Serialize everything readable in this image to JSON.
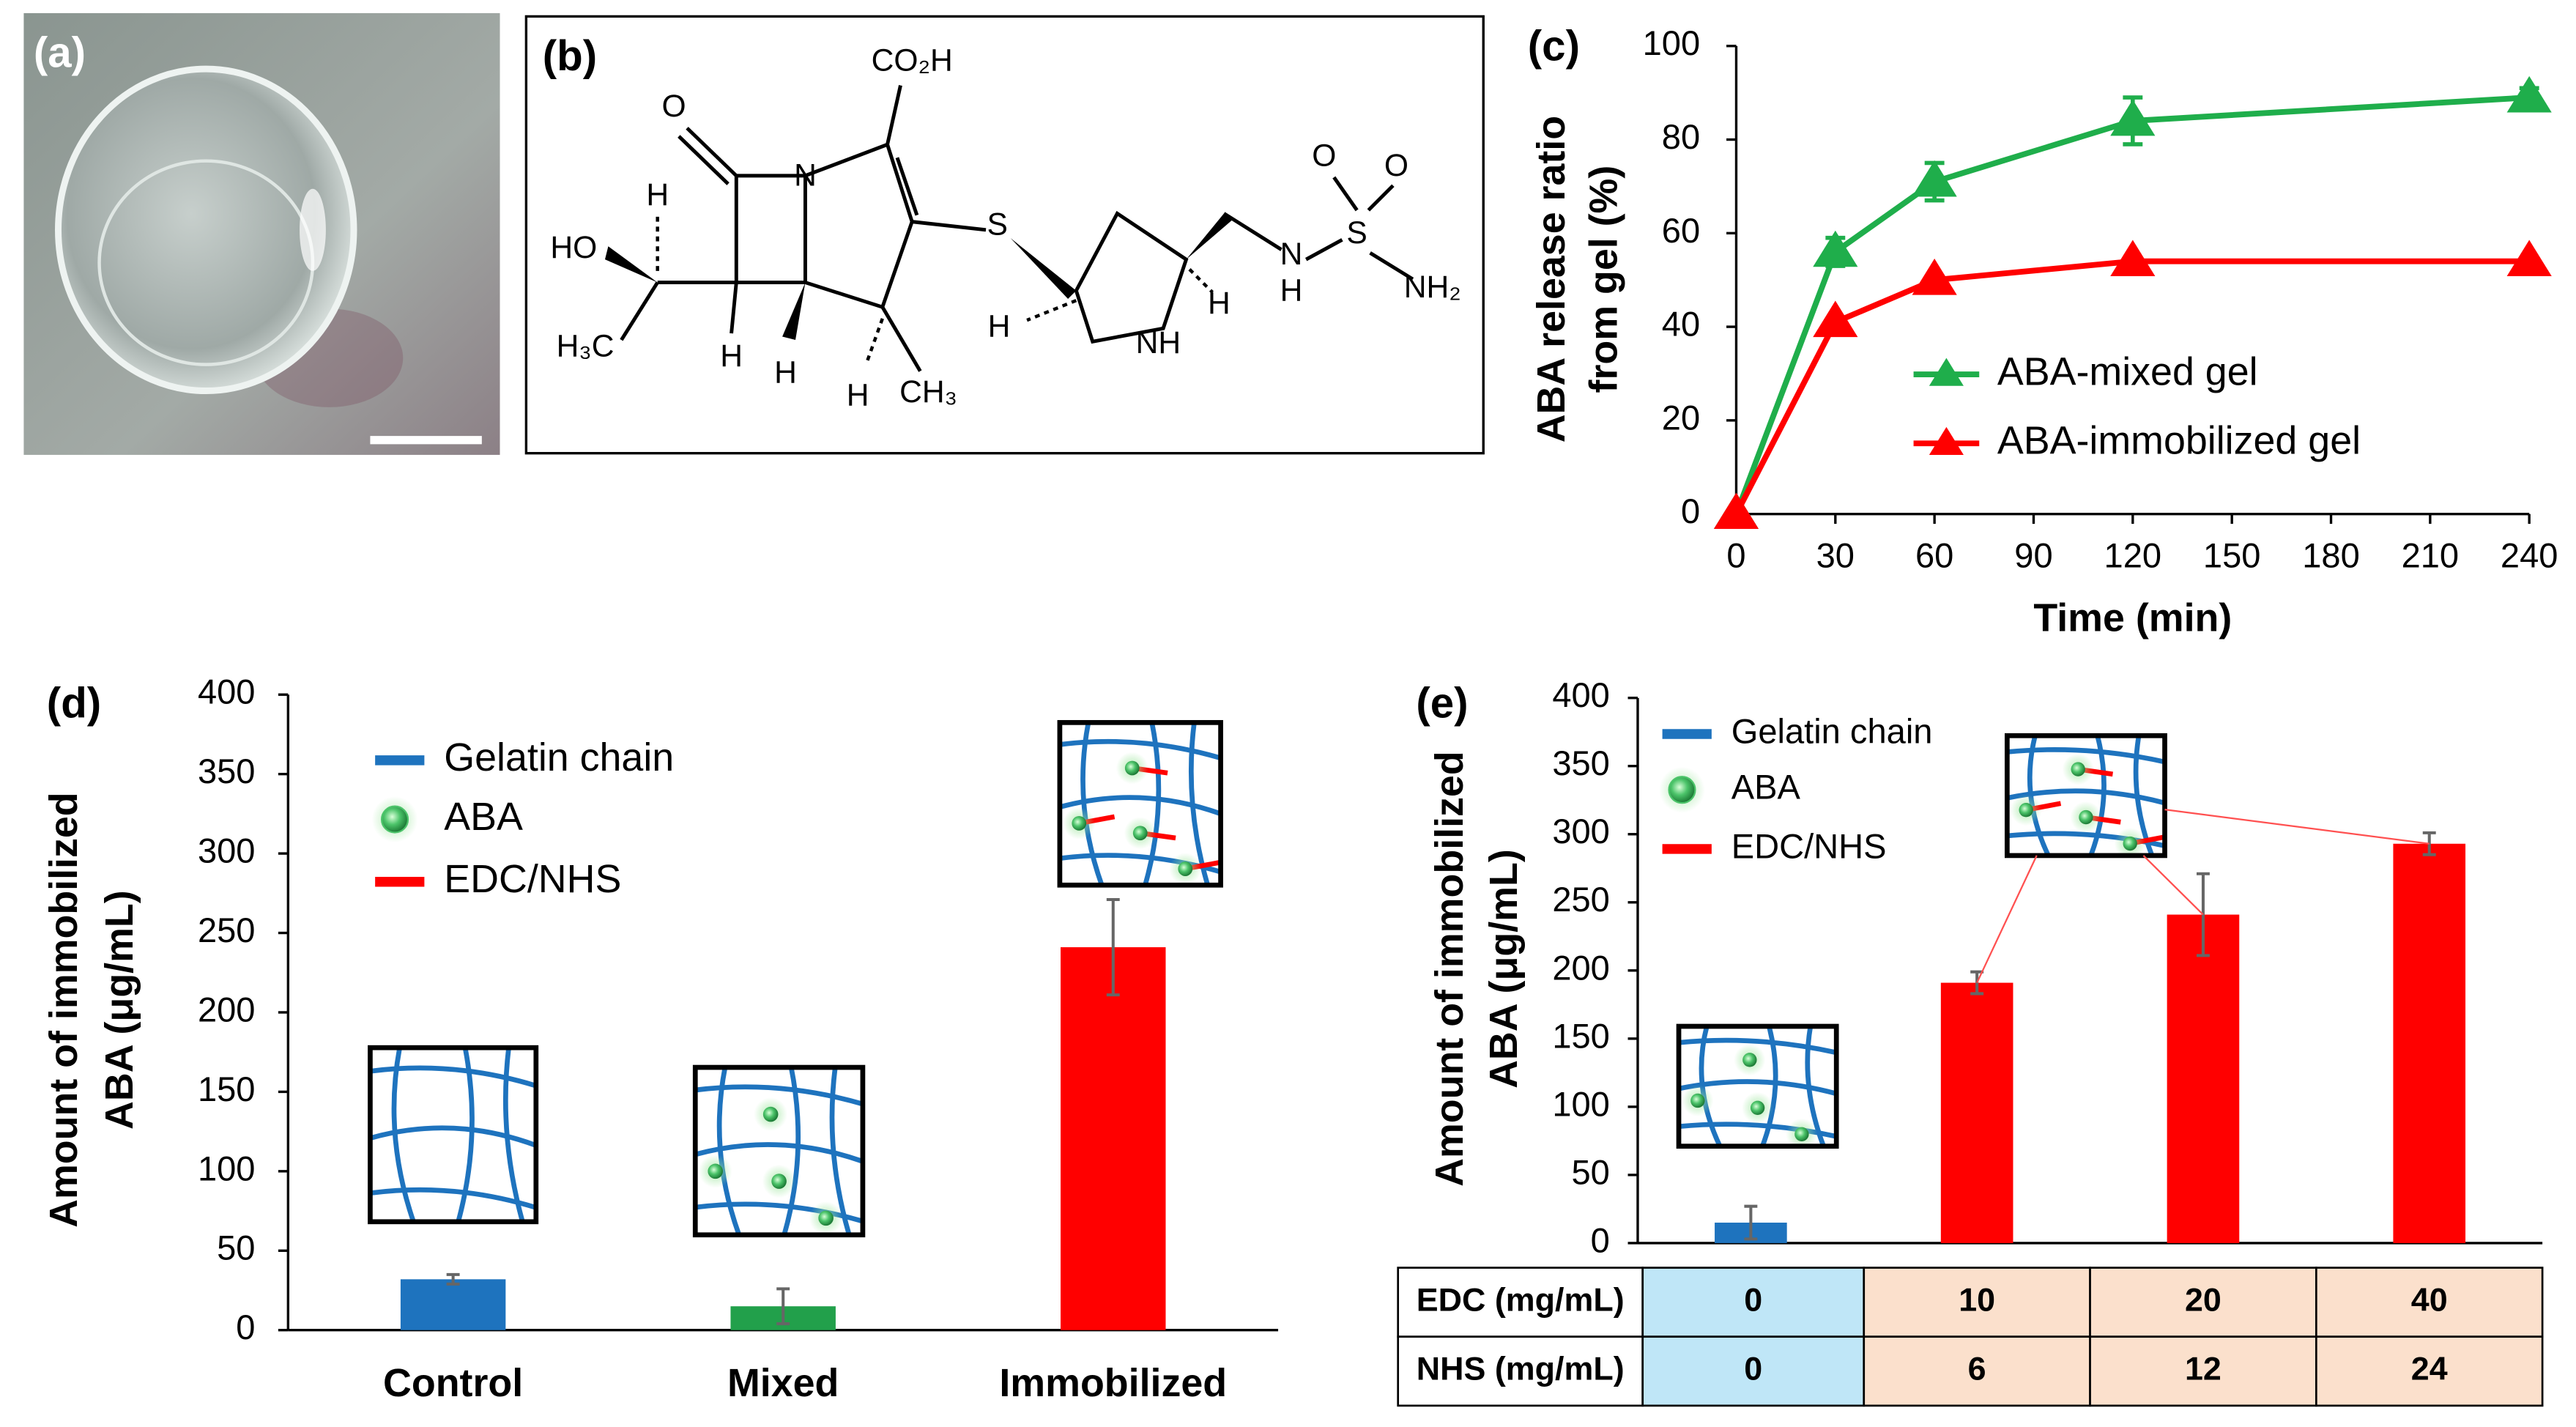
{
  "panels": [
    "(a)",
    "(b)",
    "(c)",
    "(d)",
    "(e)"
  ],
  "structure": {
    "atoms": [
      "CO₂H",
      "O",
      "N",
      "S",
      "O",
      "O",
      "HO",
      "H",
      "H₃C",
      "H",
      "H",
      "H",
      "CH₃",
      "H",
      "NH",
      "H",
      "N",
      "H",
      "S",
      "NH₂"
    ]
  },
  "chart_data": [
    {
      "type": "line",
      "xlabel": "Time (min)",
      "ylabel": [
        "ABA release ratio",
        "from gel (%)"
      ],
      "x": [
        0,
        30,
        60,
        120,
        240
      ],
      "xlim": [
        0,
        240
      ],
      "xticks": [
        0,
        30,
        60,
        90,
        120,
        150,
        180,
        210,
        240
      ],
      "ylim": [
        0,
        100
      ],
      "yticks": [
        0,
        20,
        40,
        60,
        80,
        100
      ],
      "series": [
        {
          "name": "ABA-mixed gel",
          "color": "#1fae4b",
          "values": [
            0,
            56,
            71,
            84,
            89
          ],
          "errors": [
            0,
            3,
            4,
            5,
            2
          ]
        },
        {
          "name": "ABA-immobilized gel",
          "color": "#ff0000",
          "values": [
            0,
            41,
            50,
            54,
            54
          ]
        }
      ]
    },
    {
      "type": "bar",
      "ylabel": [
        "Amount of immobilized",
        "ABA (μg/mL)"
      ],
      "categories": [
        "Control",
        "Mixed",
        "Immobilized"
      ],
      "values": [
        32,
        15,
        241
      ],
      "errors": [
        3,
        11,
        30
      ],
      "colors": [
        "#1e73be",
        "#22a04b",
        "#ff0000"
      ],
      "ylim": [
        0,
        400
      ],
      "yticks": [
        0,
        50,
        100,
        150,
        200,
        250,
        300,
        350,
        400
      ],
      "legend": [
        {
          "name": "Gelatin chain",
          "color": "#1e73be",
          "marker": "line"
        },
        {
          "name": "ABA",
          "color": "#4cc46a",
          "marker": "circle"
        },
        {
          "name": "EDC/NHS",
          "color": "#ff0000",
          "marker": "line"
        }
      ]
    },
    {
      "type": "bar",
      "ylabel": [
        "Amount of immobilized",
        "ABA (μg/mL)"
      ],
      "values": [
        15,
        191,
        241,
        293
      ],
      "errors": [
        12,
        8,
        30,
        8
      ],
      "colors": [
        "#1e73be",
        "#ff0000",
        "#ff0000",
        "#ff0000"
      ],
      "ylim": [
        0,
        400
      ],
      "yticks": [
        0,
        50,
        100,
        150,
        200,
        250,
        300,
        350,
        400
      ],
      "legend": [
        {
          "name": "Gelatin chain",
          "color": "#1e73be",
          "marker": "line"
        },
        {
          "name": "ABA",
          "color": "#4cc46a",
          "marker": "circle"
        },
        {
          "name": "EDC/NHS",
          "color": "#ff0000",
          "marker": "line"
        }
      ],
      "table": {
        "rows": [
          {
            "label": "EDC (mg/mL)",
            "values": [
              0,
              10,
              20,
              40
            ]
          },
          {
            "label": "NHS (mg/mL)",
            "values": [
              0,
              6,
              12,
              24
            ]
          }
        ],
        "colors": [
          "#bfe6f7",
          "#fbe0cc"
        ]
      }
    }
  ]
}
